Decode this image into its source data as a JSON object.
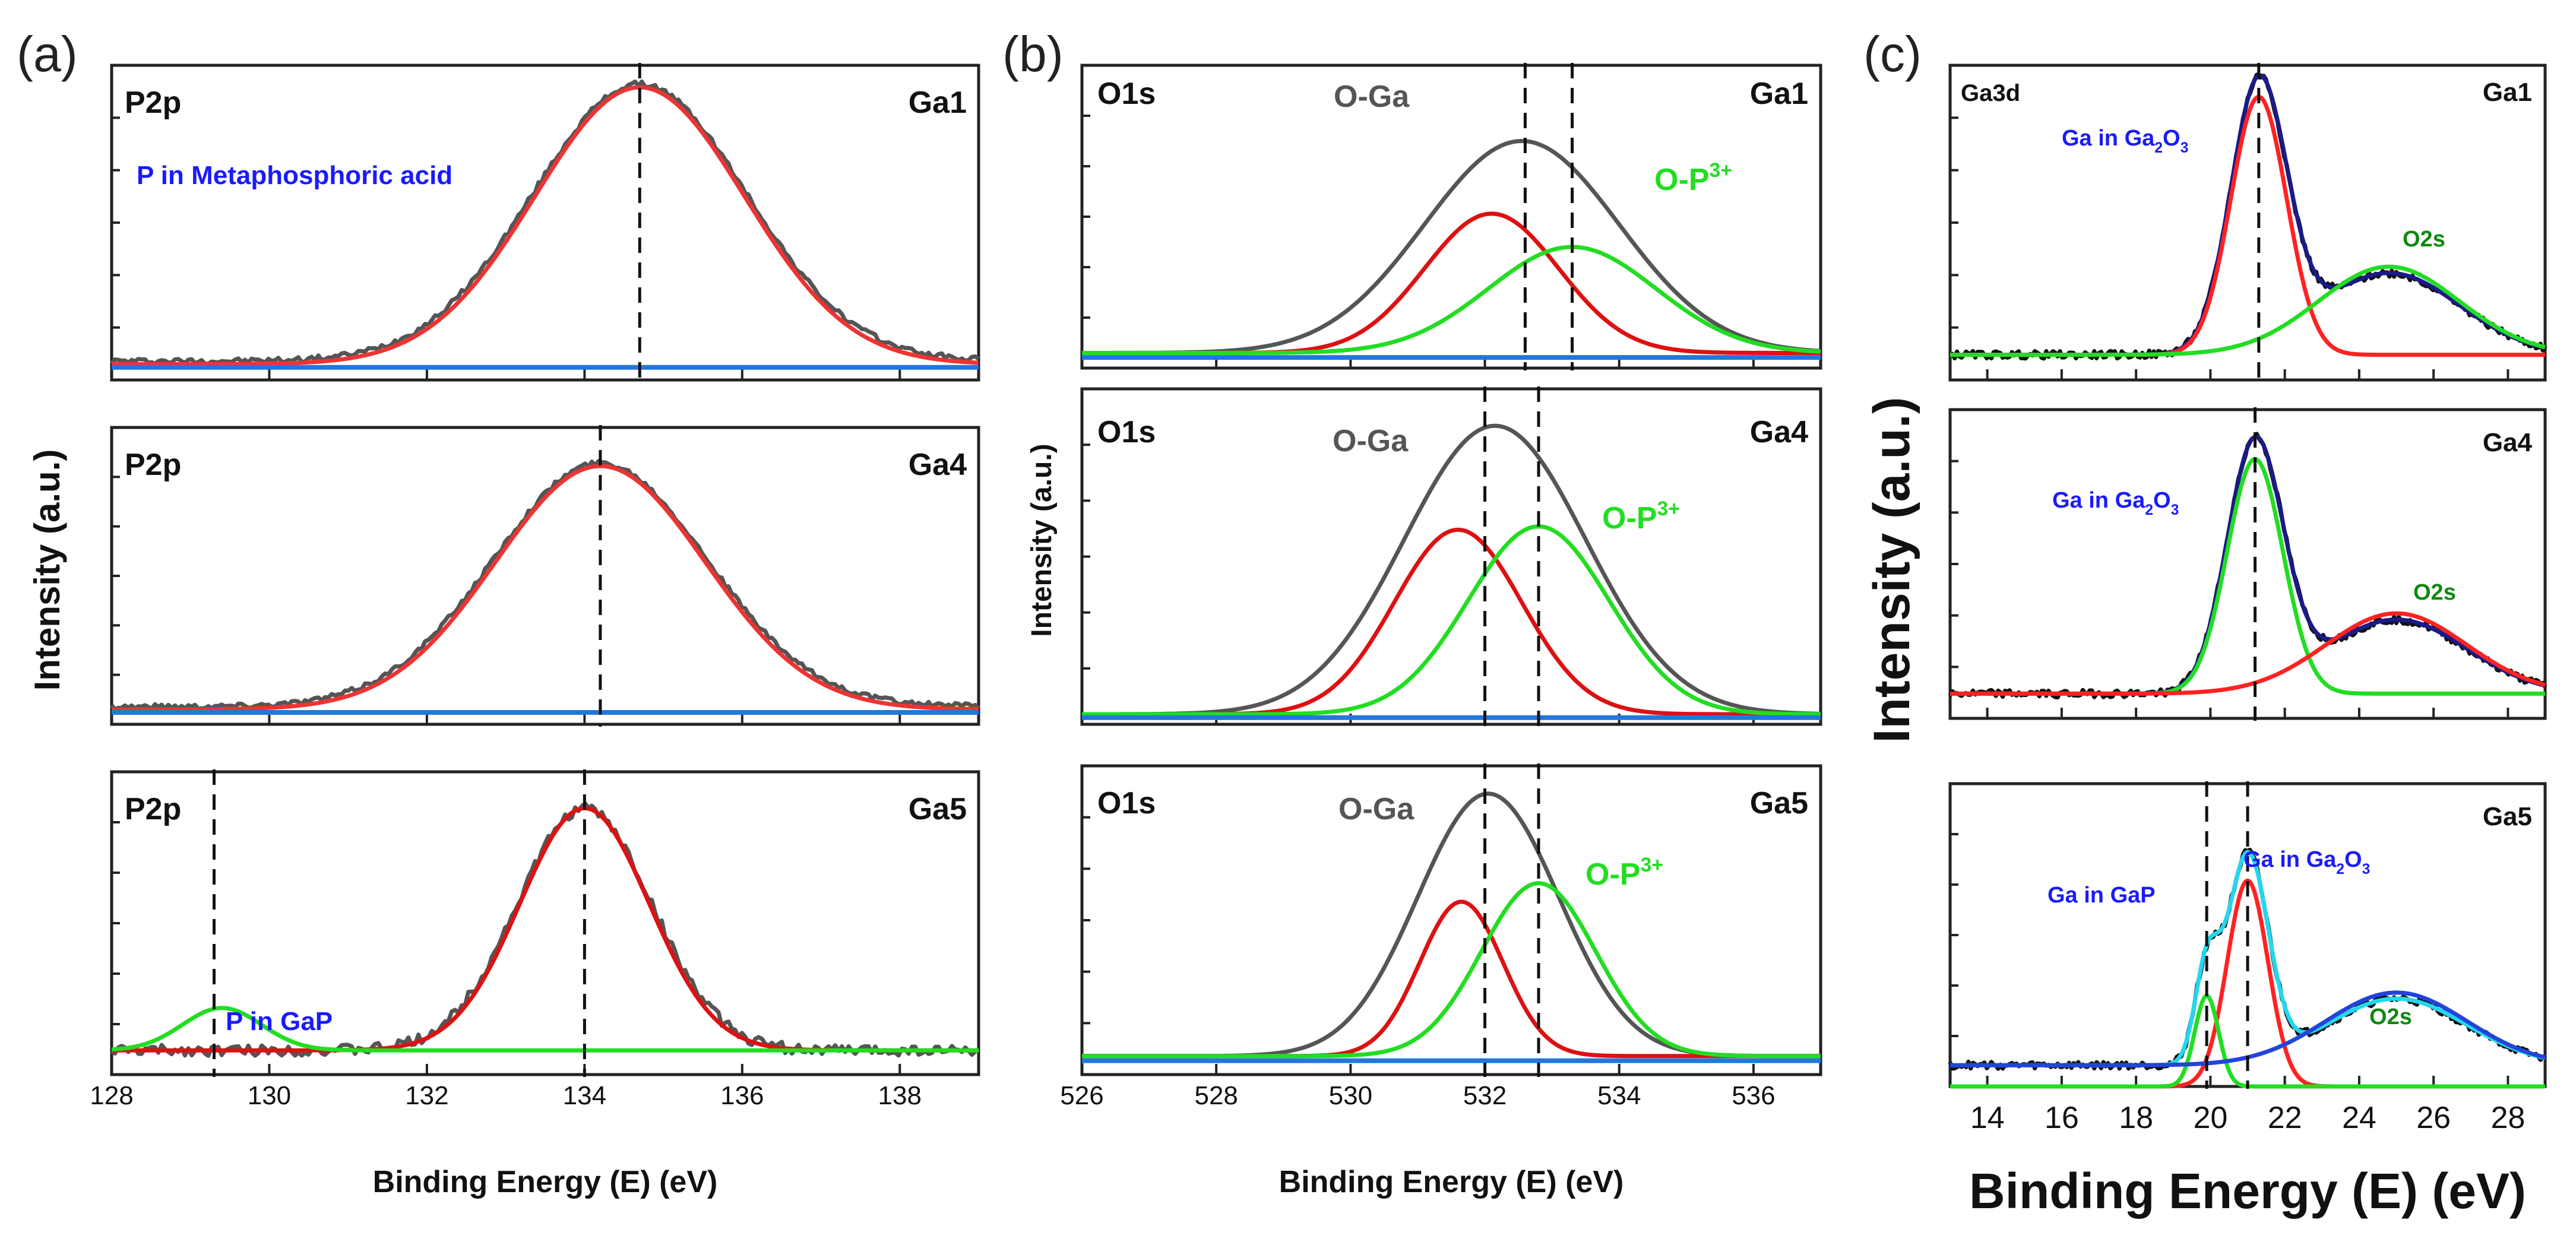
{
  "figure_labels": [
    "(a)",
    "(b)",
    "(c)"
  ],
  "chart_data": [
    {
      "type": "line",
      "panel": "(a)",
      "xlabel": "Binding Energy (E) (eV)",
      "ylabel": "Intensity (a.u.)",
      "xlim": [
        128,
        139
      ],
      "xticks": [
        128,
        130,
        132,
        134,
        136,
        138
      ],
      "subplots": [
        {
          "element": "P2p",
          "sample": "Ga1",
          "annotations": [
            {
              "text": "P in Metaphosphoric acid",
              "color": "#1a1aff"
            }
          ],
          "dashed_lines": [
            134.7
          ],
          "background": 0.05,
          "series": [
            {
              "name": "experimental",
              "color": "#555555",
              "shape": "gauss",
              "center": 134.7,
              "height": 0.88,
              "sigma": 1.35,
              "noise": 0.006,
              "base": 0.06
            },
            {
              "name": "fit",
              "color": "#ee3333",
              "shape": "gauss",
              "center": 134.7,
              "height": 0.88,
              "sigma": 1.33,
              "base": 0.05
            },
            {
              "name": "baseline",
              "color": "#2277dd",
              "shape": "flat",
              "base": 0.04
            }
          ]
        },
        {
          "element": "P2p",
          "sample": "Ga4",
          "annotations": [],
          "dashed_lines": [
            134.2
          ],
          "series": [
            {
              "name": "experimental",
              "color": "#555555",
              "shape": "gauss",
              "center": 134.2,
              "height": 0.82,
              "sigma": 1.35,
              "noise": 0.006,
              "base": 0.06
            },
            {
              "name": "fit",
              "color": "#ee3333",
              "shape": "gauss",
              "center": 134.2,
              "height": 0.82,
              "sigma": 1.33,
              "base": 0.05
            },
            {
              "name": "baseline",
              "color": "#2277dd",
              "shape": "flat",
              "base": 0.04
            }
          ]
        },
        {
          "element": "P2p",
          "sample": "Ga5",
          "annotations": [
            {
              "text": "P in GaP",
              "color": "#1a1aff"
            }
          ],
          "dashed_lines": [
            129.3,
            134.0
          ],
          "series": [
            {
              "name": "experimental",
              "color": "#555555",
              "shape": "gauss",
              "center": 134.0,
              "height": 0.8,
              "sigma": 0.85,
              "noise": 0.012,
              "base": 0.08
            },
            {
              "name": "fit",
              "color": "#dd1111",
              "shape": "gauss",
              "center": 134.0,
              "height": 0.8,
              "sigma": 0.82,
              "base": 0.08
            },
            {
              "name": "P in GaP component",
              "color": "#22dd22",
              "shape": "gauss",
              "center": 129.4,
              "height": 0.14,
              "sigma": 0.5,
              "base": 0.08
            }
          ]
        }
      ]
    },
    {
      "type": "line",
      "panel": "(b)",
      "xlabel": "Binding Energy (E) (eV)",
      "ylabel": "Intensity (a.u.)",
      "xlim": [
        526,
        537
      ],
      "xticks": [
        526,
        528,
        530,
        532,
        534,
        536
      ],
      "subplots": [
        {
          "element": "O1s",
          "sample": "Ga1",
          "annotations": [
            {
              "text": "O-Ga",
              "color": "#555555"
            },
            {
              "text": "O-P",
              "sup": "3+",
              "color": "#22dd22"
            }
          ],
          "dashed_lines": [
            532.6,
            533.3
          ],
          "series": [
            {
              "name": "O-Ga total",
              "color": "#555555",
              "shape": "gauss",
              "center": 532.55,
              "height": 0.7,
              "sigma": 1.45,
              "base": 0.05
            },
            {
              "name": "O-Ga component",
              "color": "#dd1111",
              "shape": "gauss",
              "center": 532.1,
              "height": 0.46,
              "sigma": 1.0,
              "base": 0.05
            },
            {
              "name": "O-P3+ component",
              "color": "#22dd22",
              "shape": "gauss",
              "center": 533.3,
              "height": 0.35,
              "sigma": 1.25,
              "base": 0.05
            },
            {
              "name": "baseline",
              "color": "#2277dd",
              "shape": "flat",
              "base": 0.035
            }
          ]
        },
        {
          "element": "O1s",
          "sample": "Ga4",
          "annotations": [
            {
              "text": "O-Ga",
              "color": "#555555"
            },
            {
              "text": "O-P",
              "sup": "3+",
              "color": "#22dd22"
            }
          ],
          "dashed_lines": [
            532.0,
            532.8
          ],
          "series": [
            {
              "name": "O-Ga total",
              "color": "#555555",
              "shape": "gauss",
              "center": 532.15,
              "height": 0.86,
              "sigma": 1.35,
              "base": 0.03
            },
            {
              "name": "O-Ga component",
              "color": "#dd1111",
              "shape": "gauss",
              "center": 531.6,
              "height": 0.55,
              "sigma": 0.95,
              "base": 0.03
            },
            {
              "name": "O-P3+ component",
              "color": "#22dd22",
              "shape": "gauss",
              "center": 532.8,
              "height": 0.56,
              "sigma": 1.05,
              "base": 0.03
            },
            {
              "name": "baseline",
              "color": "#2277dd",
              "shape": "flat",
              "base": 0.02
            }
          ]
        },
        {
          "element": "O1s",
          "sample": "Ga5",
          "annotations": [
            {
              "text": "O-Ga",
              "color": "#555555"
            },
            {
              "text": "O-P",
              "sup": "3+",
              "color": "#22dd22"
            }
          ],
          "dashed_lines": [
            532.0,
            532.8
          ],
          "series": [
            {
              "name": "O-Ga total",
              "color": "#555555",
              "shape": "gauss",
              "center": 532.05,
              "height": 0.85,
              "sigma": 1.05,
              "base": 0.06
            },
            {
              "name": "O-Ga component",
              "color": "#dd1111",
              "shape": "gauss",
              "center": 531.65,
              "height": 0.5,
              "sigma": 0.62,
              "base": 0.06
            },
            {
              "name": "O-P3+ component",
              "color": "#22dd22",
              "shape": "gauss",
              "center": 532.8,
              "height": 0.56,
              "sigma": 0.85,
              "base": 0.06
            },
            {
              "name": "baseline",
              "color": "#2277dd",
              "shape": "flat",
              "base": 0.045
            }
          ]
        }
      ]
    },
    {
      "type": "line",
      "panel": "(c)",
      "xlabel": "Binding Energy (E) (eV)",
      "ylabel": "Intensity (a.u.)",
      "xlim": [
        13,
        29
      ],
      "xticks": [
        14,
        16,
        18,
        20,
        22,
        24,
        26,
        28
      ],
      "subplots": [
        {
          "element": "Ga3d",
          "sample": "Ga1",
          "annotations": [
            {
              "text": "Ga in Ga",
              "sub": "2",
              "tail": "O",
              "sub2": "3",
              "color": "#1a1aff"
            },
            {
              "text": "O2s",
              "color": "#118811"
            }
          ],
          "dashed_lines": [
            21.3
          ],
          "series": [
            {
              "name": "experimental",
              "color": "#111111",
              "shape": "sum",
              "parts": [
                [
                  21.3,
                  0.84,
                  0.75
                ],
                [
                  24.8,
                  0.26,
                  1.9
                ]
              ],
              "base": 0.08,
              "noise": 0.008
            },
            {
              "name": "fit envelope",
              "color": "#1a1a88",
              "shape": "sum",
              "parts": [
                [
                  21.3,
                  0.84,
                  0.75
                ],
                [
                  24.8,
                  0.26,
                  1.9
                ]
              ],
              "base": 0.08
            },
            {
              "name": "Ga in Ga2O3",
              "color": "#ff2222",
              "shape": "gauss",
              "center": 21.3,
              "height": 0.82,
              "sigma": 0.75,
              "base": 0.08
            },
            {
              "name": "O2s",
              "color": "#22dd22",
              "shape": "gauss",
              "center": 24.8,
              "height": 0.28,
              "sigma": 1.9,
              "base": 0.08
            }
          ]
        },
        {
          "element": "",
          "sample": "Ga4",
          "annotations": [
            {
              "text": "Ga in Ga",
              "sub": "2",
              "tail": "O",
              "sub2": "3",
              "color": "#1a1aff"
            },
            {
              "text": "O2s",
              "color": "#118811"
            }
          ],
          "dashed_lines": [
            21.2
          ],
          "series": [
            {
              "name": "experimental",
              "color": "#111111",
              "shape": "sum",
              "parts": [
                [
                  21.2,
                  0.8,
                  0.75
                ],
                [
                  25.0,
                  0.24,
                  1.9
                ]
              ],
              "base": 0.08,
              "noise": 0.008
            },
            {
              "name": "fit envelope",
              "color": "#1a1a88",
              "shape": "sum",
              "parts": [
                [
                  21.2,
                  0.8,
                  0.75
                ],
                [
                  25.0,
                  0.24,
                  1.9
                ]
              ],
              "base": 0.08
            },
            {
              "name": "Ga in Ga2O3",
              "color": "#22dd22",
              "shape": "gauss",
              "center": 21.2,
              "height": 0.76,
              "sigma": 0.75,
              "base": 0.08
            },
            {
              "name": "O2s",
              "color": "#ff2222",
              "shape": "gauss",
              "center": 25.0,
              "height": 0.26,
              "sigma": 1.9,
              "base": 0.08
            }
          ]
        },
        {
          "element": "",
          "sample": "Ga5",
          "annotations": [
            {
              "text": "Ga in GaP",
              "color": "#1a1aff"
            },
            {
              "text": "Ga in Ga",
              "sub": "2",
              "tail": "O",
              "sub2": "3",
              "color": "#1a1aff"
            },
            {
              "text": "O2s",
              "color": "#118811"
            }
          ],
          "dashed_lines": [
            19.9,
            21.0
          ],
          "series": [
            {
              "name": "experimental",
              "color": "#111111",
              "shape": "sum",
              "parts": [
                [
                  19.9,
                  0.3,
                  0.32
                ],
                [
                  21.0,
                  0.68,
                  0.55
                ],
                [
                  25.0,
                  0.22,
                  1.9
                ]
              ],
              "base": 0.07,
              "noise": 0.008
            },
            {
              "name": "fit envelope",
              "color": "#22d8ee",
              "shape": "sum",
              "parts": [
                [
                  19.9,
                  0.3,
                  0.32
                ],
                [
                  21.0,
                  0.68,
                  0.55
                ],
                [
                  25.0,
                  0.22,
                  1.9
                ]
              ],
              "base": 0.07
            },
            {
              "name": "Ga in Ga2O3",
              "color": "#ff2222",
              "shape": "gauss",
              "center": 21.0,
              "height": 0.68,
              "sigma": 0.55,
              "base": 0.0
            },
            {
              "name": "Ga in GaP",
              "color": "#22dd22",
              "shape": "gauss",
              "center": 19.9,
              "height": 0.3,
              "sigma": 0.32,
              "base": 0.0
            },
            {
              "name": "O2s",
              "color": "#2244dd",
              "shape": "gauss",
              "center": 25.0,
              "height": 0.24,
              "sigma": 1.9,
              "base": 0.07
            }
          ]
        }
      ]
    }
  ]
}
